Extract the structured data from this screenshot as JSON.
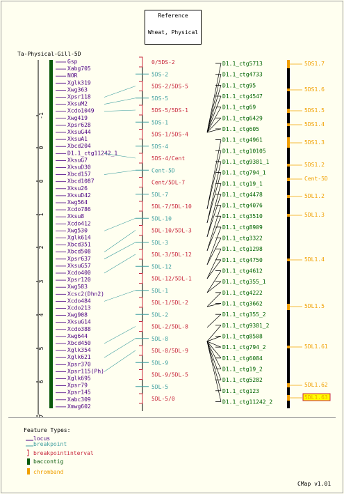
{
  "reference": {
    "title": "Reference",
    "name": "Wheat, Physical"
  },
  "map": {
    "title": "Ta-Physical-Gill-5D",
    "axis_ticks": [
      "-1",
      "0",
      "0",
      "1",
      "2",
      "3",
      "4",
      "5",
      "6",
      "7"
    ],
    "loci": [
      "Gsp",
      "Xabg705",
      "NOR",
      "Xglk319",
      "Xwg363",
      "Xpsr118",
      "XksuM2",
      "Xcdo1049",
      "Xwg419",
      "Xpsr628",
      "XksuG44",
      "XksuA1",
      "Xbcd204",
      "D1.1_ctg11242_1",
      "XksuG7",
      "XksuD30",
      "Xbcd157",
      "Xbcd1087",
      "Xksu26",
      "XksuD42",
      "Xwg564",
      "Xcdo786",
      "Xksu8",
      "Xcdo412",
      "Xwg530",
      "Xglk614",
      "Xbcd351",
      "Xbcd508",
      "Xpsr637",
      "XksuG57",
      "Xcdo400",
      "Xpsr120",
      "Xwg583",
      "Xcsc2(Dhn2)",
      "Xcdo484",
      "Xcdo213",
      "Xwg908",
      "XksuG14",
      "Xcdo388",
      "Xwg644",
      "Xbcd450",
      "Xglk354",
      "Xglk621",
      "Xpsr370",
      "Xpsr115(Ph)",
      "Xglk695",
      "Xpsr79",
      "Xpsr145",
      "Xabc309",
      "Xmwg602"
    ]
  },
  "intervals": [
    {
      "label": "0/5DS-2",
      "type": "interval"
    },
    {
      "label": "5DS-2",
      "type": "breakpoint"
    },
    {
      "label": "5DS-2/5DS-5",
      "type": "interval"
    },
    {
      "label": "5DS-5",
      "type": "breakpoint"
    },
    {
      "label": "5DS-5/5DS-1",
      "type": "interval"
    },
    {
      "label": "5DS-1",
      "type": "breakpoint"
    },
    {
      "label": "5DS-1/5DS-4",
      "type": "interval"
    },
    {
      "label": "5DS-4",
      "type": "breakpoint"
    },
    {
      "label": "5DS-4/Cent",
      "type": "interval"
    },
    {
      "label": "Cent-5D",
      "type": "breakpoint"
    },
    {
      "label": "Cent/5DL-7",
      "type": "interval"
    },
    {
      "label": "5DL-7",
      "type": "breakpoint"
    },
    {
      "label": "5DL-7/5DL-10",
      "type": "interval"
    },
    {
      "label": "5DL-10",
      "type": "breakpoint"
    },
    {
      "label": "5DL-10/5DL-3",
      "type": "interval"
    },
    {
      "label": "5DL-3",
      "type": "breakpoint"
    },
    {
      "label": "5DL-3/5DL-12",
      "type": "interval"
    },
    {
      "label": "5DL-12",
      "type": "breakpoint"
    },
    {
      "label": "5DL-12/5DL-1",
      "type": "interval"
    },
    {
      "label": "5DL-1",
      "type": "breakpoint"
    },
    {
      "label": "5DL-1/5DL-2",
      "type": "interval"
    },
    {
      "label": "5DL-2",
      "type": "breakpoint"
    },
    {
      "label": "5DL-2/5DL-8",
      "type": "interval"
    },
    {
      "label": "5DL-8",
      "type": "breakpoint"
    },
    {
      "label": "5DL-8/5DL-9",
      "type": "interval"
    },
    {
      "label": "5DL-9",
      "type": "breakpoint"
    },
    {
      "label": "5DL-9/5DL-5",
      "type": "interval"
    },
    {
      "label": "5DL-5",
      "type": "breakpoint"
    },
    {
      "label": "5DL-5/0",
      "type": "interval"
    }
  ],
  "contigs": [
    "D1.1_ctg5713",
    "D1.1_ctg4733",
    "D1.1_ctg95",
    "D1.1_ctg4547",
    "D1.1_ctg69",
    "D1.1_ctg6429",
    "D1.1_ctg605",
    "D1.1_ctg4961",
    "D1.1_ctg10105",
    "D1.1_ctg9381_1",
    "D1.1_ctg794_1",
    "D1.1_ctg19_1",
    "D1.1_ctg4478",
    "D1.1_ctg4076",
    "D1.1_ctg3510",
    "D1.1_ctg8909",
    "D1.1_ctg3322",
    "D1.1_ctg1298",
    "D1.1_ctg4750",
    "D1.1_ctg4612",
    "D1.1_ctg355_1",
    "D1.1_ctg4222",
    "D1.1_ctg3662",
    "D1.1_ctg355_2",
    "D1.1_ctg9381_2",
    "D1.1_ctg8508",
    "D1.1_ctg794_2",
    "D1.1_ctg6084",
    "D1.1_ctg19_2",
    "D1.1_ctg5282",
    "D1.1_ctg123",
    "D1.1_ctg11242_2"
  ],
  "chrombands": [
    {
      "label": "5DS1.7",
      "selected": false
    },
    {
      "label": "5DS1.6",
      "selected": false
    },
    {
      "label": "5DS1.5",
      "selected": false
    },
    {
      "label": "5DS1.4",
      "selected": false
    },
    {
      "label": "5DS1.3",
      "selected": false
    },
    {
      "label": "5DS1.2",
      "selected": false
    },
    {
      "label": "Cent-5D",
      "selected": false
    },
    {
      "label": "5DL1.2",
      "selected": false
    },
    {
      "label": "5DL1.3",
      "selected": false
    },
    {
      "label": "5DL1.4",
      "selected": false
    },
    {
      "label": "5DL1.5",
      "selected": false
    },
    {
      "label": "5DL1.61",
      "selected": false
    },
    {
      "label": "5DL1.62",
      "selected": false
    },
    {
      "label": "5DL1.63",
      "selected": true
    }
  ],
  "legend": {
    "title": "Feature Types:",
    "items": [
      "locus",
      "breakpoint",
      "breakpointinterval",
      "baccontig",
      "chromband"
    ]
  },
  "version": "CMap v1.01",
  "colors": {
    "locus": "#4b0082",
    "breakpoint": "#3f9f9f",
    "interval": "#c8283c",
    "baccontig": "#0a5a0a",
    "chromband": "#f0a000",
    "contig_text": "#006400",
    "backbone": "#000000",
    "selected_fill": "#ffff00"
  }
}
